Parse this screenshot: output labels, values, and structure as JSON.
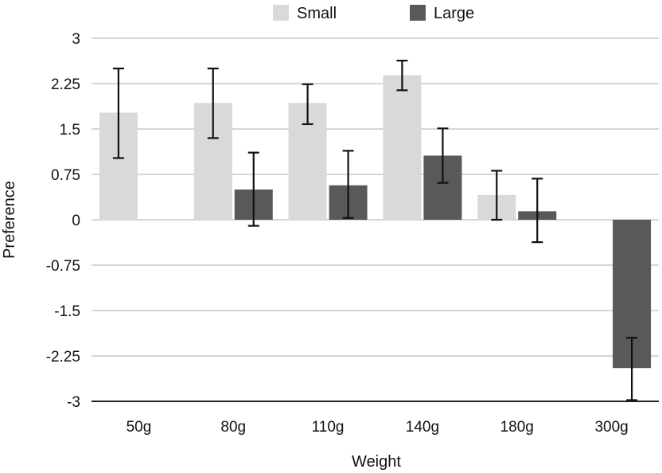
{
  "chart_data": {
    "type": "bar",
    "title": "",
    "xlabel": "Weight",
    "ylabel": "Preference",
    "categories": [
      "50g",
      "80g",
      "110g",
      "140g",
      "180g",
      "300g"
    ],
    "ylim": [
      -3,
      3
    ],
    "yticks": [
      "3",
      "2.25",
      "1.5",
      "0.75",
      "0",
      "-0.75",
      "-1.5",
      "-2.25",
      "-3"
    ],
    "ytick_values": [
      3,
      2.25,
      1.5,
      0.75,
      0,
      -0.75,
      -1.5,
      -2.25,
      -3
    ],
    "grid": true,
    "legend_position": "top",
    "series": [
      {
        "name": "Small",
        "color": "#d9d9d9",
        "values": [
          1.77,
          1.93,
          1.93,
          2.39,
          0.41,
          null
        ],
        "err_low": [
          1.02,
          1.35,
          1.58,
          2.14,
          0.0,
          null
        ],
        "err_high": [
          2.5,
          2.5,
          2.24,
          2.63,
          0.81,
          null
        ]
      },
      {
        "name": "Large",
        "color": "#595959",
        "values": [
          null,
          0.5,
          0.57,
          1.06,
          0.14,
          -2.45
        ],
        "err_low": [
          null,
          -0.1,
          0.03,
          0.61,
          -0.37,
          -2.98
        ],
        "err_high": [
          null,
          1.11,
          1.14,
          1.51,
          0.68,
          -1.95
        ]
      }
    ]
  }
}
